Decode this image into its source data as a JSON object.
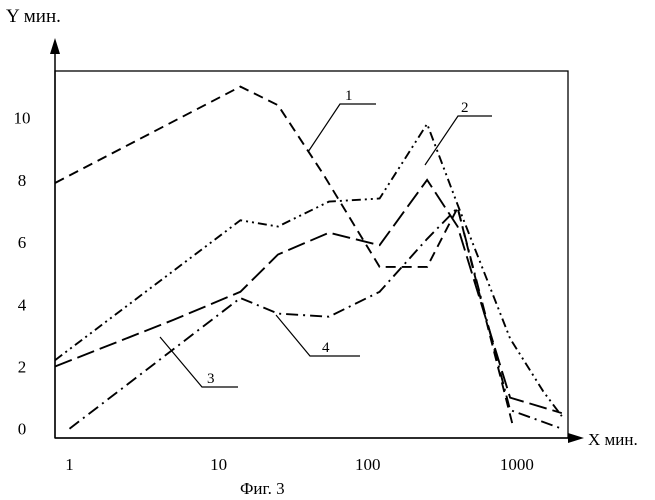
{
  "chart_data": {
    "type": "line",
    "title": "",
    "caption": "Фиг. 3",
    "ylabel": "Y мин.",
    "xlabel": "X мин.",
    "xscale": "log",
    "xlim": [
      0.8,
      2200
    ],
    "ylim": [
      -0.3,
      11.5
    ],
    "x_ticks": [
      {
        "value": 1,
        "label": "1"
      },
      {
        "value": 10,
        "label": "10"
      },
      {
        "value": 100,
        "label": "100"
      },
      {
        "value": 1000,
        "label": "1000"
      }
    ],
    "y_ticks": [
      {
        "value": 0,
        "label": "0"
      },
      {
        "value": 2,
        "label": "2"
      },
      {
        "value": 4,
        "label": "4"
      },
      {
        "value": 6,
        "label": "6"
      },
      {
        "value": 8,
        "label": "8"
      },
      {
        "value": 10,
        "label": "10"
      }
    ],
    "series": [
      {
        "name": "1",
        "dash": "dash",
        "points": [
          [
            0.8,
            7.9
          ],
          [
            14,
            11.0
          ],
          [
            25,
            10.4
          ],
          [
            50,
            8.2
          ],
          [
            120,
            5.2
          ],
          [
            250,
            5.2
          ],
          [
            400,
            7.1
          ],
          [
            950,
            0.0
          ]
        ]
      },
      {
        "name": "2",
        "dash": "dot-dot-dash",
        "points": [
          [
            0.8,
            2.2
          ],
          [
            14,
            6.7
          ],
          [
            25,
            6.5
          ],
          [
            55,
            7.3
          ],
          [
            120,
            7.4
          ],
          [
            250,
            9.8
          ],
          [
            400,
            7.2
          ],
          [
            900,
            2.9
          ],
          [
            1500,
            1.2
          ],
          [
            2000,
            0.4
          ]
        ]
      },
      {
        "name": "3",
        "dash": "long-dash",
        "points": [
          [
            0.8,
            2.0
          ],
          [
            5,
            3.5
          ],
          [
            14,
            4.4
          ],
          [
            25,
            5.6
          ],
          [
            55,
            6.3
          ],
          [
            120,
            5.9
          ],
          [
            250,
            8.0
          ],
          [
            400,
            6.5
          ],
          [
            900,
            1.0
          ],
          [
            2000,
            0.5
          ]
        ]
      },
      {
        "name": "4",
        "dash": "dash-dot",
        "points": [
          [
            1,
            0.0
          ],
          [
            14,
            4.2
          ],
          [
            25,
            3.7
          ],
          [
            55,
            3.6
          ],
          [
            120,
            4.4
          ],
          [
            250,
            6.1
          ],
          [
            400,
            7.1
          ],
          [
            900,
            0.6
          ],
          [
            2000,
            0.0
          ]
        ]
      }
    ],
    "annotations": [
      {
        "text": "1",
        "series": "1"
      },
      {
        "text": "2",
        "series": "2"
      },
      {
        "text": "3",
        "series": "3"
      },
      {
        "text": "4",
        "series": "4"
      }
    ]
  }
}
